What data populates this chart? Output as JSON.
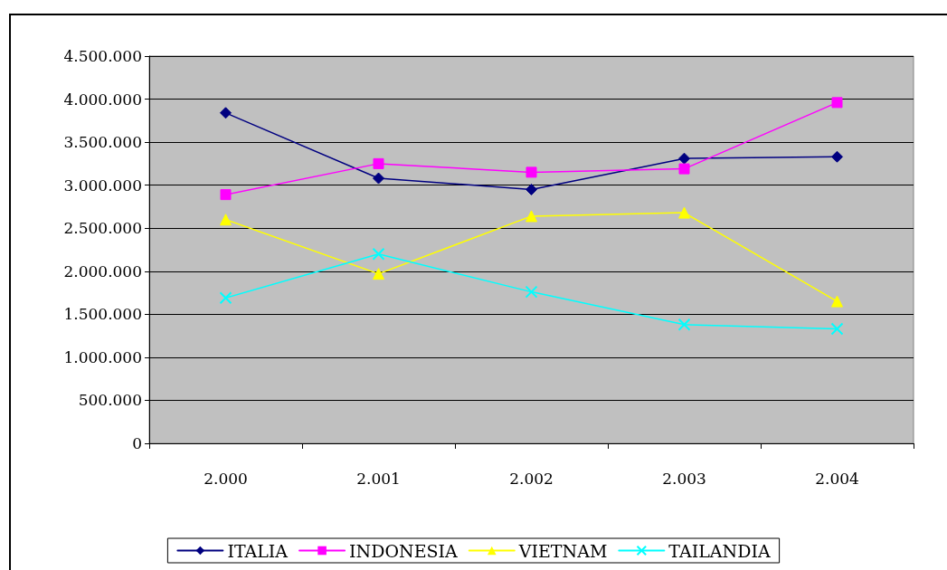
{
  "chart_data": {
    "type": "line",
    "categories": [
      "2.000",
      "2.001",
      "2.002",
      "2.003",
      "2.004"
    ],
    "series": [
      {
        "name": "ITALIA",
        "color": "#000080",
        "marker": "diamond",
        "values": [
          3840000,
          3080000,
          2950000,
          3310000,
          3330000
        ]
      },
      {
        "name": "INDONESIA",
        "color": "#ff00ff",
        "marker": "square",
        "values": [
          2890000,
          3250000,
          3150000,
          3190000,
          3960000
        ]
      },
      {
        "name": "VIETNAM",
        "color": "#ffff00",
        "marker": "triangle",
        "values": [
          2600000,
          1970000,
          2640000,
          2680000,
          1650000
        ]
      },
      {
        "name": "TAILANDIA",
        "color": "#00ffff",
        "marker": "cross",
        "values": [
          1690000,
          2200000,
          1760000,
          1380000,
          1330000
        ]
      }
    ],
    "ylim": [
      0,
      4500000
    ],
    "yticks": [
      0,
      {
        "value": 500000,
        "label": "500.000"
      },
      {
        "value": 1000000,
        "label": "1.000.000"
      },
      {
        "value": 1500000,
        "label": "1.500.000"
      },
      {
        "value": 2000000,
        "label": "2.000.000"
      },
      {
        "value": 2500000,
        "label": "2.500.000"
      },
      {
        "value": 3000000,
        "label": "3.000.000"
      },
      {
        "value": 3500000,
        "label": "3.500.000"
      },
      {
        "value": 4000000,
        "label": "4.000.000"
      },
      {
        "value": 4500000,
        "label": "4.500.000"
      }
    ],
    "grid": "y",
    "legend": "bottom",
    "line_style": "solid"
  }
}
